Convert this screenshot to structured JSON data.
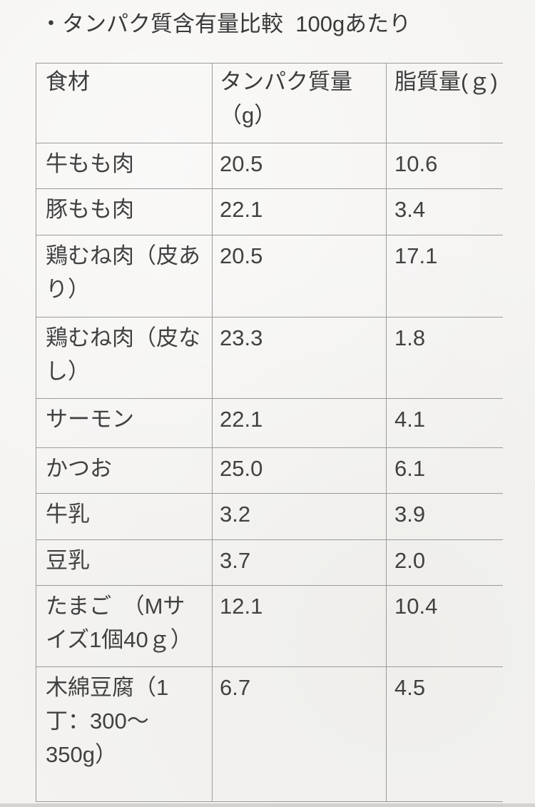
{
  "title": "・タンパク質含有量比較  100gあたり",
  "colors": {
    "background": "#f4f3f1",
    "grid_line": "#9b9b9b",
    "text": "#3d3d3d"
  },
  "table": {
    "headers": [
      "食材",
      "タンパク質量\n（g）",
      "脂質量(ｇ)"
    ],
    "rows": [
      {
        "food": "牛もも肉",
        "protein": "20.5",
        "fat": "10.6"
      },
      {
        "food": "豚もも肉",
        "protein": "22.1",
        "fat": "3.4"
      },
      {
        "food": "鶏むね肉（皮あ\nり）",
        "protein": "20.5",
        "fat": "17.1"
      },
      {
        "food": "鶏むね肉（皮な\nし）",
        "protein": "23.3",
        "fat": "1.8"
      },
      {
        "food": "サーモン",
        "protein": "22.1",
        "fat": "4.1"
      },
      {
        "food": "かつお",
        "protein": "25.0",
        "fat": "6.1"
      },
      {
        "food": "牛乳",
        "protein": "3.2",
        "fat": "3.9"
      },
      {
        "food": "豆乳",
        "protein": "3.7",
        "fat": "2.0"
      },
      {
        "food": "たまご　（Mサ\nイズ1個40ｇ）",
        "protein": "12.1",
        "fat": "10.4"
      },
      {
        "food": "木綿豆腐（1\n丁：300〜\n350g）",
        "protein": "6.7",
        "fat": "4.5"
      }
    ]
  },
  "chart_data": {
    "type": "table",
    "title": "タンパク質含有量比較 100gあたり",
    "columns": [
      "食材",
      "タンパク質量（g）",
      "脂質量(ｇ)"
    ],
    "rows": [
      [
        "牛もも肉",
        20.5,
        10.6
      ],
      [
        "豚もも肉",
        22.1,
        3.4
      ],
      [
        "鶏むね肉（皮あり）",
        20.5,
        17.1
      ],
      [
        "鶏むね肉（皮なし）",
        23.3,
        1.8
      ],
      [
        "サーモン",
        22.1,
        4.1
      ],
      [
        "かつお",
        25.0,
        6.1
      ],
      [
        "牛乳",
        3.2,
        3.9
      ],
      [
        "豆乳",
        3.7,
        2.0
      ],
      [
        "たまご（Mサイズ1個40ｇ）",
        12.1,
        10.4
      ],
      [
        "木綿豆腐（1丁：300〜350g）",
        6.7,
        4.5
      ]
    ]
  }
}
